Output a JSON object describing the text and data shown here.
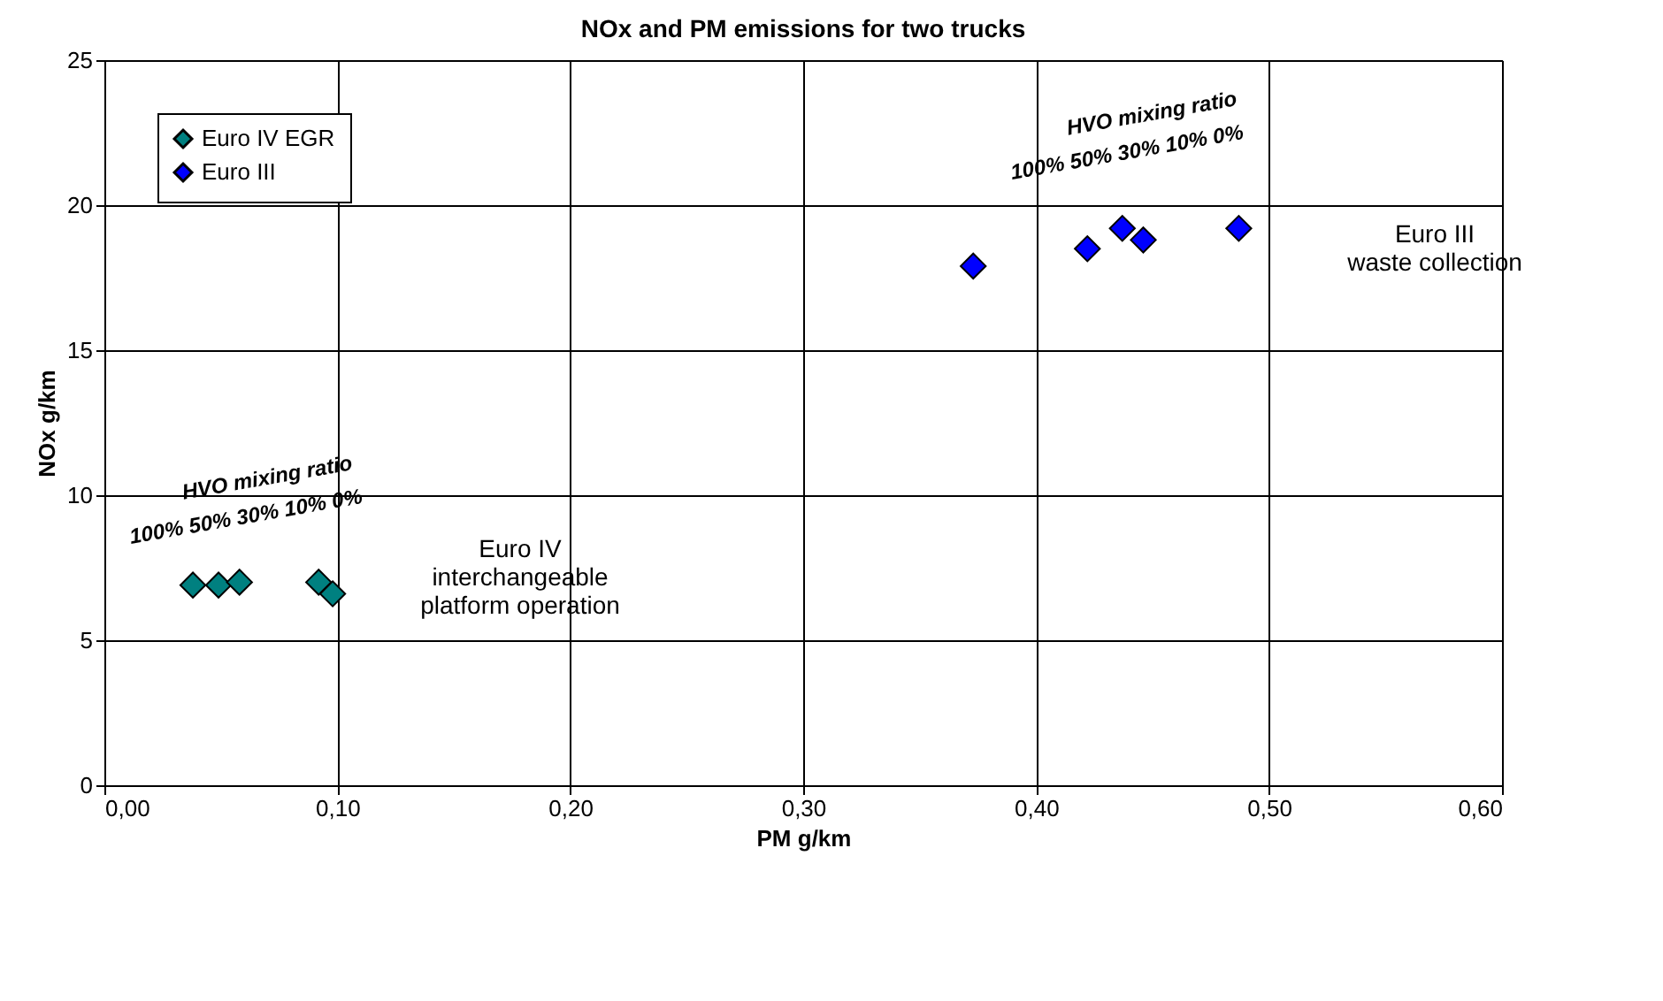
{
  "chart_data": {
    "type": "scatter",
    "title": "NOx and PM emissions for two trucks",
    "xlabel": "PM g/km",
    "ylabel": "NOx g/km",
    "xlim": [
      0,
      0.6
    ],
    "ylim": [
      0,
      25
    ],
    "xticks": [
      {
        "value": 0,
        "label": "0,00"
      },
      {
        "value": 0.1,
        "label": "0,10"
      },
      {
        "value": 0.2,
        "label": "0,20"
      },
      {
        "value": 0.3,
        "label": "0,30"
      },
      {
        "value": 0.4,
        "label": "0,40"
      },
      {
        "value": 0.5,
        "label": "0,50"
      },
      {
        "value": 0.6,
        "label": "0,60"
      }
    ],
    "yticks": [
      0,
      5,
      10,
      15,
      20,
      25
    ],
    "grid": true,
    "legend": "top left",
    "marker": "diamond",
    "series": [
      {
        "name": "Euro IV EGR",
        "color": "#008080",
        "x": [
          0.038,
          0.049,
          0.058,
          0.092,
          0.098
        ],
        "values": [
          6.9,
          6.9,
          7.0,
          7.0,
          6.6
        ]
      },
      {
        "name": "Euro III",
        "color": "#0000ff",
        "x": [
          0.373,
          0.422,
          0.437,
          0.446,
          0.487
        ],
        "values": [
          17.9,
          18.5,
          19.2,
          18.8,
          19.2
        ]
      }
    ],
    "annotations": [
      "HVO mixing ratio",
      "100% 50% 30% 10% 0%",
      "Euro IV\ninterchangeable\nplatform operation",
      "HVO mixing ratio",
      "100% 50% 30% 10% 0%",
      "Euro III\nwaste collection"
    ]
  }
}
